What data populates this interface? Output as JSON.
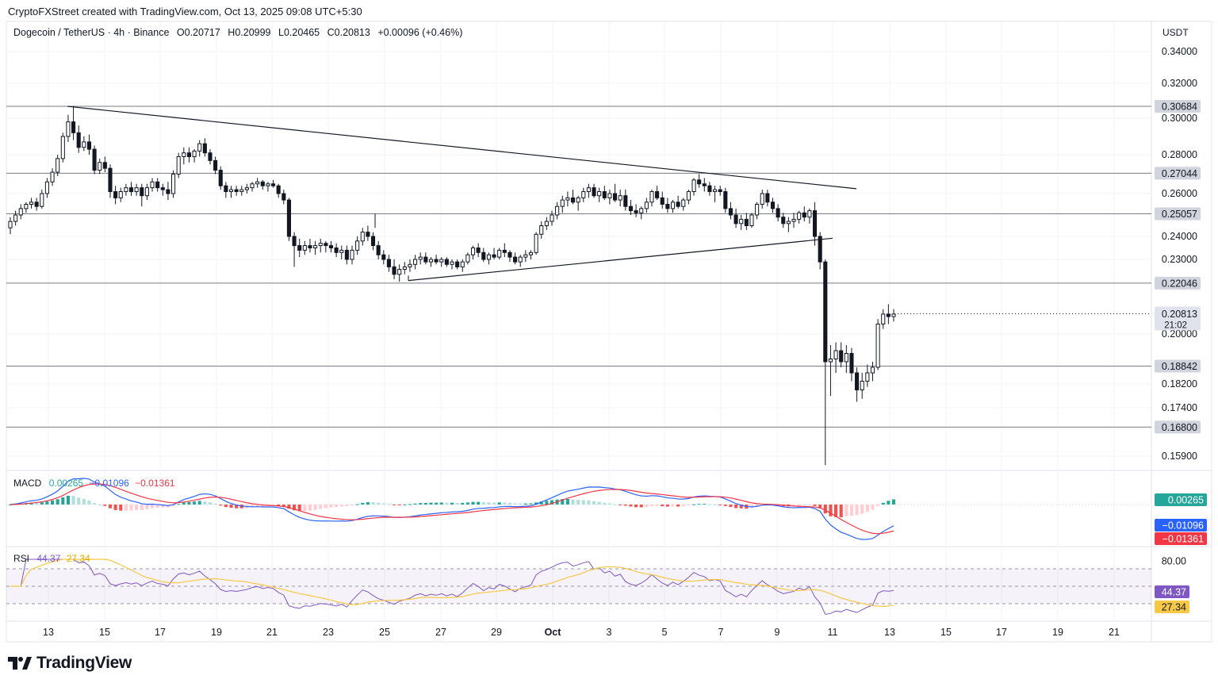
{
  "header": {
    "credit": "CryptoFXStreet created with TradingView.com, Oct 13, 2025 09:08 UTC+5:30"
  },
  "legend": {
    "symbol": "Dogecoin / TetherUS · 4h · Binance",
    "open": "O0.20717",
    "high": "H0.20999",
    "low": "L0.20465",
    "close": "C0.20813",
    "change": "+0.00096 (+0.46%)"
  },
  "currency": "USDT",
  "colors": {
    "up": "#131722",
    "down": "#131722",
    "hist_up_strong": "#26a69a",
    "hist_up_weak": "#b2dfdb",
    "hist_down_strong": "#ef5350",
    "hist_down_weak": "#ffcdd2",
    "macd_line": "#2962ff",
    "signal_line": "#f23645",
    "rsi_line": "#7e57c2",
    "rsi_ma": "#f7c846"
  },
  "chart_data": {
    "type": "candlestick",
    "price_axis": {
      "ticks": [
        "0.34000",
        "0.32000",
        "0.30000",
        "0.28000",
        "0.26000",
        "0.24000",
        "0.23000",
        "0.20000",
        "0.18200",
        "0.17400",
        "0.15900"
      ],
      "ylim": [
        0.155,
        0.345
      ]
    },
    "x_ticks": [
      "13",
      "15",
      "17",
      "19",
      "21",
      "23",
      "25",
      "27",
      "29",
      "Oct",
      "3",
      "5",
      "7",
      "9",
      "11",
      "13",
      "15",
      "17",
      "19",
      "21"
    ],
    "levels": [
      {
        "value": 0.30684,
        "label": "0.30684"
      },
      {
        "value": 0.27044,
        "label": "0.27044"
      },
      {
        "value": 0.25057,
        "label": "0.25057"
      },
      {
        "value": 0.22046,
        "label": "0.22046"
      },
      {
        "value": 0.18842,
        "label": "0.18842"
      },
      {
        "value": 0.168,
        "label": "0.16800"
      }
    ],
    "last_price": {
      "value": 0.20813,
      "label": "0.20813",
      "countdown": "21:02"
    },
    "trendlines": [
      {
        "from": [
          "Sep 13",
          0.3068
        ],
        "to": [
          "Oct 10",
          0.263
        ]
      },
      {
        "from": [
          "Sep 25",
          0.2215
        ],
        "to": [
          "Oct 10",
          0.239
        ]
      }
    ],
    "series": [
      {
        "name": "DOGEUSDT",
        "ohlc": [
          [
            0.244,
            0.249,
            0.241,
            0.247
          ],
          [
            0.247,
            0.252,
            0.245,
            0.25
          ],
          [
            0.25,
            0.255,
            0.248,
            0.253
          ],
          [
            0.253,
            0.256,
            0.251,
            0.255
          ],
          [
            0.255,
            0.258,
            0.253,
            0.256
          ],
          [
            0.256,
            0.258,
            0.252,
            0.254
          ],
          [
            0.254,
            0.262,
            0.253,
            0.26
          ],
          [
            0.26,
            0.268,
            0.258,
            0.266
          ],
          [
            0.266,
            0.273,
            0.264,
            0.271
          ],
          [
            0.271,
            0.28,
            0.269,
            0.278
          ],
          [
            0.278,
            0.292,
            0.276,
            0.29
          ],
          [
            0.29,
            0.302,
            0.287,
            0.298
          ],
          [
            0.298,
            0.307,
            0.288,
            0.292
          ],
          [
            0.292,
            0.296,
            0.281,
            0.284
          ],
          [
            0.284,
            0.29,
            0.282,
            0.287
          ],
          [
            0.287,
            0.291,
            0.28,
            0.283
          ],
          [
            0.283,
            0.285,
            0.27,
            0.272
          ],
          [
            0.272,
            0.278,
            0.27,
            0.276
          ],
          [
            0.276,
            0.279,
            0.271,
            0.273
          ],
          [
            0.273,
            0.275,
            0.258,
            0.261
          ],
          [
            0.261,
            0.264,
            0.255,
            0.258
          ],
          [
            0.258,
            0.263,
            0.256,
            0.261
          ],
          [
            0.261,
            0.265,
            0.259,
            0.263
          ],
          [
            0.263,
            0.266,
            0.259,
            0.261
          ],
          [
            0.261,
            0.265,
            0.259,
            0.263
          ],
          [
            0.263,
            0.265,
            0.254,
            0.259
          ],
          [
            0.259,
            0.265,
            0.257,
            0.263
          ],
          [
            0.263,
            0.268,
            0.261,
            0.266
          ],
          [
            0.266,
            0.268,
            0.261,
            0.263
          ],
          [
            0.263,
            0.265,
            0.259,
            0.262
          ],
          [
            0.262,
            0.266,
            0.257,
            0.26
          ],
          [
            0.26,
            0.272,
            0.258,
            0.27
          ],
          [
            0.27,
            0.281,
            0.268,
            0.279
          ],
          [
            0.279,
            0.284,
            0.275,
            0.281
          ],
          [
            0.281,
            0.284,
            0.276,
            0.279
          ],
          [
            0.279,
            0.283,
            0.276,
            0.282
          ],
          [
            0.282,
            0.288,
            0.279,
            0.286
          ],
          [
            0.286,
            0.289,
            0.279,
            0.281
          ],
          [
            0.281,
            0.283,
            0.275,
            0.277
          ],
          [
            0.277,
            0.279,
            0.27,
            0.272
          ],
          [
            0.272,
            0.274,
            0.262,
            0.264
          ],
          [
            0.264,
            0.266,
            0.258,
            0.261
          ],
          [
            0.261,
            0.264,
            0.258,
            0.262
          ],
          [
            0.262,
            0.264,
            0.259,
            0.261
          ],
          [
            0.261,
            0.264,
            0.259,
            0.262
          ],
          [
            0.262,
            0.265,
            0.26,
            0.263
          ],
          [
            0.263,
            0.266,
            0.261,
            0.265
          ],
          [
            0.265,
            0.268,
            0.263,
            0.266
          ],
          [
            0.266,
            0.267,
            0.262,
            0.264
          ],
          [
            0.264,
            0.266,
            0.261,
            0.265
          ],
          [
            0.265,
            0.267,
            0.263,
            0.264
          ],
          [
            0.264,
            0.265,
            0.258,
            0.26
          ],
          [
            0.26,
            0.262,
            0.255,
            0.257
          ],
          [
            0.257,
            0.258,
            0.238,
            0.24
          ],
          [
            0.24,
            0.242,
            0.227,
            0.236
          ],
          [
            0.236,
            0.239,
            0.231,
            0.234
          ],
          [
            0.234,
            0.238,
            0.232,
            0.236
          ],
          [
            0.236,
            0.239,
            0.233,
            0.235
          ],
          [
            0.235,
            0.238,
            0.232,
            0.236
          ],
          [
            0.236,
            0.239,
            0.233,
            0.237
          ],
          [
            0.237,
            0.238,
            0.233,
            0.236
          ],
          [
            0.236,
            0.238,
            0.233,
            0.235
          ],
          [
            0.235,
            0.237,
            0.231,
            0.233
          ],
          [
            0.233,
            0.236,
            0.23,
            0.234
          ],
          [
            0.234,
            0.236,
            0.228,
            0.23
          ],
          [
            0.23,
            0.236,
            0.228,
            0.234
          ],
          [
            0.234,
            0.24,
            0.232,
            0.238
          ],
          [
            0.238,
            0.244,
            0.236,
            0.242
          ],
          [
            0.242,
            0.245,
            0.238,
            0.24
          ],
          [
            0.24,
            0.242,
            0.234,
            0.236
          ],
          [
            0.236,
            0.238,
            0.23,
            0.232
          ],
          [
            0.232,
            0.234,
            0.228,
            0.23
          ],
          [
            0.23,
            0.232,
            0.225,
            0.227
          ],
          [
            0.227,
            0.23,
            0.222,
            0.224
          ],
          [
            0.224,
            0.228,
            0.221,
            0.226
          ],
          [
            0.226,
            0.229,
            0.224,
            0.227
          ],
          [
            0.227,
            0.23,
            0.225,
            0.228
          ],
          [
            0.228,
            0.232,
            0.226,
            0.23
          ],
          [
            0.23,
            0.233,
            0.228,
            0.231
          ],
          [
            0.231,
            0.233,
            0.228,
            0.229
          ],
          [
            0.229,
            0.231,
            0.227,
            0.23
          ],
          [
            0.23,
            0.232,
            0.228,
            0.229
          ],
          [
            0.229,
            0.231,
            0.227,
            0.23
          ],
          [
            0.23,
            0.231,
            0.227,
            0.228
          ],
          [
            0.228,
            0.23,
            0.226,
            0.229
          ],
          [
            0.229,
            0.23,
            0.226,
            0.227
          ],
          [
            0.227,
            0.23,
            0.225,
            0.229
          ],
          [
            0.229,
            0.233,
            0.228,
            0.232
          ],
          [
            0.232,
            0.236,
            0.23,
            0.235
          ],
          [
            0.235,
            0.237,
            0.231,
            0.233
          ],
          [
            0.233,
            0.235,
            0.229,
            0.23
          ],
          [
            0.23,
            0.233,
            0.228,
            0.232
          ],
          [
            0.232,
            0.235,
            0.23,
            0.231
          ],
          [
            0.231,
            0.235,
            0.23,
            0.234
          ],
          [
            0.234,
            0.237,
            0.231,
            0.233
          ],
          [
            0.233,
            0.234,
            0.229,
            0.231
          ],
          [
            0.231,
            0.233,
            0.228,
            0.229
          ],
          [
            0.229,
            0.232,
            0.227,
            0.231
          ],
          [
            0.231,
            0.234,
            0.229,
            0.232
          ],
          [
            0.232,
            0.234,
            0.23,
            0.233
          ],
          [
            0.233,
            0.242,
            0.232,
            0.241
          ],
          [
            0.241,
            0.247,
            0.239,
            0.245
          ],
          [
            0.245,
            0.249,
            0.243,
            0.247
          ],
          [
            0.247,
            0.252,
            0.245,
            0.25
          ],
          [
            0.25,
            0.256,
            0.248,
            0.254
          ],
          [
            0.254,
            0.259,
            0.251,
            0.257
          ],
          [
            0.257,
            0.261,
            0.254,
            0.258
          ],
          [
            0.258,
            0.262,
            0.255,
            0.256
          ],
          [
            0.256,
            0.259,
            0.252,
            0.258
          ],
          [
            0.258,
            0.263,
            0.256,
            0.261
          ],
          [
            0.261,
            0.265,
            0.258,
            0.263
          ],
          [
            0.263,
            0.265,
            0.258,
            0.259
          ],
          [
            0.259,
            0.263,
            0.256,
            0.261
          ],
          [
            0.261,
            0.264,
            0.257,
            0.258
          ],
          [
            0.258,
            0.262,
            0.255,
            0.26
          ],
          [
            0.26,
            0.265,
            0.256,
            0.257
          ],
          [
            0.257,
            0.262,
            0.254,
            0.259
          ],
          [
            0.259,
            0.262,
            0.252,
            0.254
          ],
          [
            0.254,
            0.257,
            0.25,
            0.252
          ],
          [
            0.252,
            0.255,
            0.249,
            0.251
          ],
          [
            0.251,
            0.254,
            0.248,
            0.253
          ],
          [
            0.253,
            0.258,
            0.251,
            0.256
          ],
          [
            0.256,
            0.262,
            0.254,
            0.261
          ],
          [
            0.261,
            0.264,
            0.257,
            0.258
          ],
          [
            0.258,
            0.261,
            0.253,
            0.255
          ],
          [
            0.255,
            0.258,
            0.251,
            0.253
          ],
          [
            0.253,
            0.257,
            0.251,
            0.256
          ],
          [
            0.256,
            0.259,
            0.253,
            0.254
          ],
          [
            0.254,
            0.258,
            0.252,
            0.257
          ],
          [
            0.257,
            0.262,
            0.255,
            0.261
          ],
          [
            0.261,
            0.268,
            0.259,
            0.267
          ],
          [
            0.267,
            0.27,
            0.263,
            0.265
          ],
          [
            0.265,
            0.268,
            0.261,
            0.264
          ],
          [
            0.264,
            0.266,
            0.259,
            0.261
          ],
          [
            0.261,
            0.264,
            0.256,
            0.262
          ],
          [
            0.262,
            0.264,
            0.259,
            0.261
          ],
          [
            0.261,
            0.263,
            0.251,
            0.253
          ],
          [
            0.253,
            0.256,
            0.248,
            0.25
          ],
          [
            0.25,
            0.253,
            0.244,
            0.246
          ],
          [
            0.246,
            0.25,
            0.243,
            0.248
          ],
          [
            0.248,
            0.251,
            0.243,
            0.245
          ],
          [
            0.245,
            0.251,
            0.244,
            0.25
          ],
          [
            0.25,
            0.256,
            0.248,
            0.255
          ],
          [
            0.255,
            0.262,
            0.253,
            0.26
          ],
          [
            0.26,
            0.262,
            0.254,
            0.256
          ],
          [
            0.256,
            0.258,
            0.251,
            0.253
          ],
          [
            0.253,
            0.255,
            0.247,
            0.249
          ],
          [
            0.249,
            0.251,
            0.244,
            0.246
          ],
          [
            0.246,
            0.249,
            0.242,
            0.247
          ],
          [
            0.247,
            0.251,
            0.244,
            0.248
          ],
          [
            0.248,
            0.252,
            0.246,
            0.251
          ],
          [
            0.251,
            0.254,
            0.247,
            0.249
          ],
          [
            0.249,
            0.253,
            0.246,
            0.252
          ],
          [
            0.252,
            0.256,
            0.236,
            0.24
          ],
          [
            0.24,
            0.242,
            0.226,
            0.229
          ],
          [
            0.229,
            0.23,
            0.156,
            0.19
          ],
          [
            0.19,
            0.196,
            0.178,
            0.191
          ],
          [
            0.191,
            0.197,
            0.186,
            0.194
          ],
          [
            0.194,
            0.197,
            0.188,
            0.19
          ],
          [
            0.19,
            0.196,
            0.186,
            0.193
          ],
          [
            0.193,
            0.195,
            0.183,
            0.186
          ],
          [
            0.186,
            0.188,
            0.176,
            0.18
          ],
          [
            0.18,
            0.186,
            0.177,
            0.183
          ],
          [
            0.183,
            0.189,
            0.181,
            0.186
          ],
          [
            0.186,
            0.19,
            0.183,
            0.188
          ],
          [
            0.188,
            0.206,
            0.187,
            0.204
          ],
          [
            0.204,
            0.21,
            0.202,
            0.208
          ],
          [
            0.208,
            0.212,
            0.204,
            0.207
          ],
          [
            0.207,
            0.21,
            0.205,
            0.208
          ]
        ]
      }
    ],
    "macd": {
      "label": "MACD",
      "values": [
        "0.00265",
        "−0.01096",
        "−0.01361"
      ],
      "axis_labels": [
        "0.00265",
        "−0.01096",
        "−0.01361"
      ]
    },
    "rsi": {
      "label": "RSI",
      "values": [
        "44.37",
        "27.34"
      ],
      "axis_labels": [
        "80.00",
        "44.37",
        "27.34"
      ],
      "upper_band": 70,
      "lower_band": 30
    }
  },
  "brand": "TradingView"
}
